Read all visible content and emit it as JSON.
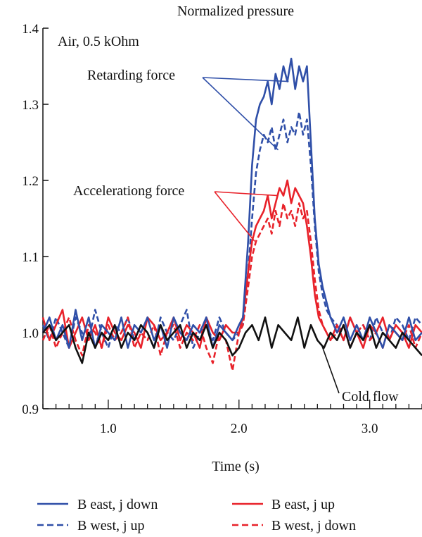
{
  "chart_data": {
    "type": "line",
    "title": "Normalized pressure",
    "xlabel": "Time (s)",
    "ylabel": "",
    "xlim": [
      0.5,
      3.4
    ],
    "ylim": [
      0.9,
      1.4
    ],
    "x_ticks": [
      {
        "value": 1.0,
        "label": "1.0"
      },
      {
        "value": 2.0,
        "label": "2.0"
      },
      {
        "value": 3.0,
        "label": "3.0"
      }
    ],
    "y_ticks": [
      {
        "value": 0.9,
        "label": "0.9"
      },
      {
        "value": 1.0,
        "label": "1.0"
      },
      {
        "value": 1.1,
        "label": "1.1"
      },
      {
        "value": 1.2,
        "label": "1.2"
      },
      {
        "value": 1.3,
        "label": "1.3"
      },
      {
        "value": 1.4,
        "label": "1.4"
      }
    ],
    "grid": false,
    "legend_position": "bottom",
    "annotations": {
      "condition": "Air, 0.5 kOhm",
      "retarding": "Retarding force",
      "accelerating": "Accelerationg force",
      "cold": "Cold flow"
    },
    "series": [
      {
        "name": "B east, j down",
        "color": "#2f4fa8",
        "dash": "solid",
        "x": [
          0.5,
          0.55,
          0.6,
          0.65,
          0.7,
          0.75,
          0.8,
          0.85,
          0.9,
          0.95,
          1.0,
          1.05,
          1.1,
          1.15,
          1.2,
          1.25,
          1.3,
          1.35,
          1.4,
          1.45,
          1.5,
          1.55,
          1.6,
          1.65,
          1.7,
          1.75,
          1.8,
          1.85,
          1.9,
          1.95,
          2.0,
          2.03,
          2.07,
          2.1,
          2.13,
          2.16,
          2.19,
          2.22,
          2.25,
          2.28,
          2.31,
          2.34,
          2.37,
          2.4,
          2.43,
          2.46,
          2.49,
          2.52,
          2.55,
          2.58,
          2.61,
          2.64,
          2.67,
          2.7,
          2.75,
          2.8,
          2.85,
          2.9,
          2.95,
          3.0,
          3.05,
          3.1,
          3.15,
          3.2,
          3.25,
          3.3,
          3.35,
          3.4
        ],
        "values": [
          1.0,
          1.02,
          0.99,
          1.01,
          0.98,
          1.03,
          0.99,
          1.02,
          0.98,
          1.01,
          1.0,
          0.99,
          1.02,
          0.98,
          1.01,
          1.0,
          1.02,
          0.99,
          1.01,
          0.98,
          1.02,
          1.0,
          0.99,
          1.01,
          1.0,
          1.02,
          0.98,
          1.01,
          1.0,
          0.99,
          1.01,
          1.02,
          1.12,
          1.22,
          1.28,
          1.3,
          1.31,
          1.33,
          1.3,
          1.34,
          1.32,
          1.35,
          1.33,
          1.36,
          1.32,
          1.35,
          1.33,
          1.35,
          1.25,
          1.15,
          1.09,
          1.06,
          1.04,
          1.02,
          1.0,
          1.02,
          0.99,
          1.01,
          0.99,
          1.02,
          1.0,
          0.98,
          1.01,
          1.0,
          0.99,
          1.02,
          0.99,
          1.0
        ]
      },
      {
        "name": "B west, j up",
        "color": "#2f4fa8",
        "dash": "dashed",
        "x": [
          0.5,
          0.55,
          0.6,
          0.65,
          0.7,
          0.75,
          0.8,
          0.85,
          0.9,
          0.95,
          1.0,
          1.05,
          1.1,
          1.15,
          1.2,
          1.25,
          1.3,
          1.35,
          1.4,
          1.45,
          1.5,
          1.55,
          1.6,
          1.65,
          1.7,
          1.75,
          1.8,
          1.85,
          1.9,
          1.95,
          2.0,
          2.03,
          2.07,
          2.1,
          2.13,
          2.16,
          2.19,
          2.22,
          2.25,
          2.28,
          2.31,
          2.34,
          2.37,
          2.4,
          2.43,
          2.46,
          2.49,
          2.52,
          2.55,
          2.58,
          2.61,
          2.64,
          2.67,
          2.7,
          2.75,
          2.8,
          2.85,
          2.9,
          2.95,
          3.0,
          3.05,
          3.1,
          3.15,
          3.2,
          3.25,
          3.3,
          3.35,
          3.4
        ],
        "values": [
          1.01,
          0.99,
          1.02,
          1.0,
          0.98,
          1.02,
          1.0,
          0.99,
          1.03,
          1.0,
          0.98,
          1.01,
          1.0,
          1.02,
          0.99,
          1.01,
          1.0,
          0.98,
          1.02,
          1.0,
          0.99,
          1.01,
          1.03,
          0.98,
          1.0,
          1.01,
          0.99,
          1.02,
          1.0,
          0.99,
          1.0,
          1.01,
          1.08,
          1.15,
          1.21,
          1.24,
          1.26,
          1.25,
          1.27,
          1.24,
          1.26,
          1.28,
          1.25,
          1.27,
          1.26,
          1.29,
          1.26,
          1.28,
          1.22,
          1.14,
          1.08,
          1.05,
          1.03,
          1.02,
          1.01,
          0.99,
          1.02,
          1.0,
          1.01,
          0.99,
          1.02,
          1.0,
          0.99,
          1.02,
          1.01,
          0.99,
          1.02,
          1.01
        ]
      },
      {
        "name": "B east, j up",
        "color": "#e8222a",
        "dash": "solid",
        "x": [
          0.5,
          0.55,
          0.6,
          0.65,
          0.7,
          0.75,
          0.8,
          0.85,
          0.9,
          0.95,
          1.0,
          1.05,
          1.1,
          1.15,
          1.2,
          1.25,
          1.3,
          1.35,
          1.4,
          1.45,
          1.5,
          1.55,
          1.6,
          1.65,
          1.7,
          1.75,
          1.8,
          1.85,
          1.9,
          1.95,
          2.0,
          2.03,
          2.07,
          2.1,
          2.13,
          2.16,
          2.19,
          2.22,
          2.25,
          2.28,
          2.31,
          2.34,
          2.37,
          2.4,
          2.43,
          2.46,
          2.49,
          2.52,
          2.55,
          2.58,
          2.61,
          2.64,
          2.67,
          2.7,
          2.75,
          2.8,
          2.85,
          2.9,
          2.95,
          3.0,
          3.05,
          3.1,
          3.15,
          3.2,
          3.25,
          3.3,
          3.35,
          3.4
        ],
        "values": [
          1.02,
          0.99,
          1.01,
          1.03,
          0.98,
          1.0,
          1.02,
          0.99,
          1.01,
          0.98,
          1.02,
          1.0,
          0.99,
          1.01,
          1.0,
          0.98,
          1.02,
          1.01,
          0.99,
          1.0,
          1.02,
          0.99,
          1.01,
          1.0,
          0.98,
          1.02,
          1.0,
          0.99,
          1.01,
          1.0,
          1.0,
          1.02,
          1.08,
          1.12,
          1.14,
          1.15,
          1.16,
          1.18,
          1.15,
          1.17,
          1.19,
          1.18,
          1.2,
          1.17,
          1.19,
          1.18,
          1.17,
          1.14,
          1.1,
          1.05,
          1.02,
          1.01,
          1.0,
          0.99,
          1.01,
          0.99,
          1.02,
          1.0,
          0.98,
          1.01,
          1.0,
          1.02,
          0.99,
          1.01,
          1.0,
          0.98,
          1.01,
          1.0
        ]
      },
      {
        "name": "B west, j down",
        "color": "#e8222a",
        "dash": "dashed",
        "x": [
          0.5,
          0.55,
          0.6,
          0.65,
          0.7,
          0.75,
          0.8,
          0.85,
          0.9,
          0.95,
          1.0,
          1.05,
          1.1,
          1.15,
          1.2,
          1.25,
          1.3,
          1.35,
          1.4,
          1.45,
          1.5,
          1.55,
          1.6,
          1.65,
          1.7,
          1.75,
          1.8,
          1.85,
          1.9,
          1.95,
          2.0,
          2.03,
          2.07,
          2.1,
          2.13,
          2.16,
          2.19,
          2.22,
          2.25,
          2.28,
          2.31,
          2.34,
          2.37,
          2.4,
          2.43,
          2.46,
          2.49,
          2.52,
          2.55,
          2.58,
          2.61,
          2.64,
          2.67,
          2.7,
          2.75,
          2.8,
          2.85,
          2.9,
          2.95,
          3.0,
          3.05,
          3.1,
          3.15,
          3.2,
          3.25,
          3.3,
          3.35,
          3.4
        ],
        "values": [
          0.99,
          1.01,
          0.98,
          1.0,
          1.02,
          0.99,
          0.97,
          1.01,
          1.0,
          0.98,
          1.01,
          0.99,
          1.0,
          1.02,
          0.98,
          1.0,
          0.99,
          1.01,
          0.97,
          1.0,
          1.01,
          0.98,
          1.0,
          0.99,
          1.01,
          0.98,
          0.96,
          1.0,
          0.99,
          0.95,
          1.0,
          1.01,
          1.06,
          1.1,
          1.12,
          1.13,
          1.14,
          1.15,
          1.13,
          1.16,
          1.14,
          1.17,
          1.15,
          1.16,
          1.14,
          1.17,
          1.15,
          1.16,
          1.12,
          1.07,
          1.03,
          1.01,
          1.0,
          0.99,
          1.0,
          1.01,
          0.98,
          1.0,
          1.01,
          0.99,
          1.0,
          0.98,
          1.01,
          1.0,
          0.99,
          1.01,
          0.98,
          1.0
        ]
      },
      {
        "name": "Cold flow",
        "color": "#111111",
        "dash": "solid",
        "x": [
          0.5,
          0.55,
          0.6,
          0.65,
          0.7,
          0.75,
          0.8,
          0.85,
          0.9,
          0.95,
          1.0,
          1.05,
          1.1,
          1.15,
          1.2,
          1.25,
          1.3,
          1.35,
          1.4,
          1.45,
          1.5,
          1.55,
          1.6,
          1.65,
          1.7,
          1.75,
          1.8,
          1.85,
          1.9,
          1.95,
          2.0,
          2.05,
          2.1,
          2.15,
          2.2,
          2.25,
          2.3,
          2.35,
          2.4,
          2.45,
          2.5,
          2.55,
          2.6,
          2.65,
          2.7,
          2.75,
          2.8,
          2.85,
          2.9,
          2.95,
          3.0,
          3.05,
          3.1,
          3.15,
          3.2,
          3.25,
          3.3,
          3.35,
          3.4
        ],
        "values": [
          1.0,
          1.01,
          0.99,
          1.0,
          1.01,
          0.98,
          0.96,
          1.0,
          0.98,
          1.0,
          0.99,
          1.01,
          0.98,
          1.0,
          0.99,
          1.01,
          1.0,
          0.98,
          1.01,
          0.99,
          1.0,
          1.01,
          0.98,
          1.0,
          0.99,
          1.01,
          0.98,
          1.0,
          0.99,
          0.97,
          0.98,
          1.0,
          1.01,
          0.99,
          1.02,
          0.98,
          1.01,
          1.0,
          0.99,
          1.02,
          0.98,
          1.01,
          0.99,
          0.98,
          1.0,
          0.99,
          1.01,
          0.98,
          1.0,
          0.99,
          1.01,
          0.98,
          1.0,
          0.99,
          0.98,
          1.0,
          0.99,
          0.98,
          0.97
        ]
      }
    ]
  }
}
